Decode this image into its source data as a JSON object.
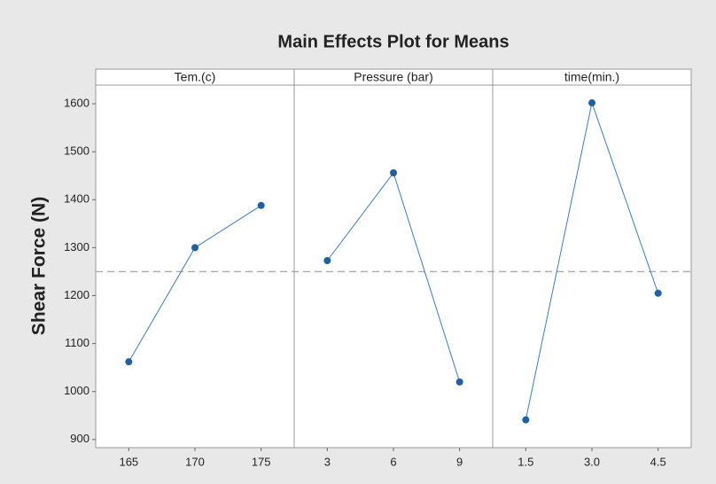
{
  "chart_data": {
    "type": "line",
    "title": "Main Effects Plot for Means",
    "ylabel": "Shear Force (N)",
    "ylim": [
      883,
      1639
    ],
    "yticks": [
      900,
      1000,
      1100,
      1200,
      1300,
      1400,
      1500,
      1600
    ],
    "reference_line": 1250,
    "color": "#1f5fa8",
    "panels": [
      {
        "title": "Tem.(c)",
        "categories": [
          "165",
          "170",
          "175"
        ],
        "values": [
          1062,
          1300,
          1388
        ]
      },
      {
        "title": "Pressure (bar)",
        "categories": [
          "3",
          "6",
          "9"
        ],
        "values": [
          1273,
          1456,
          1020
        ]
      },
      {
        "title": "time(min.)",
        "categories": [
          "1.5",
          "3.0",
          "4.5"
        ],
        "values": [
          941,
          1602,
          1205
        ]
      }
    ]
  }
}
